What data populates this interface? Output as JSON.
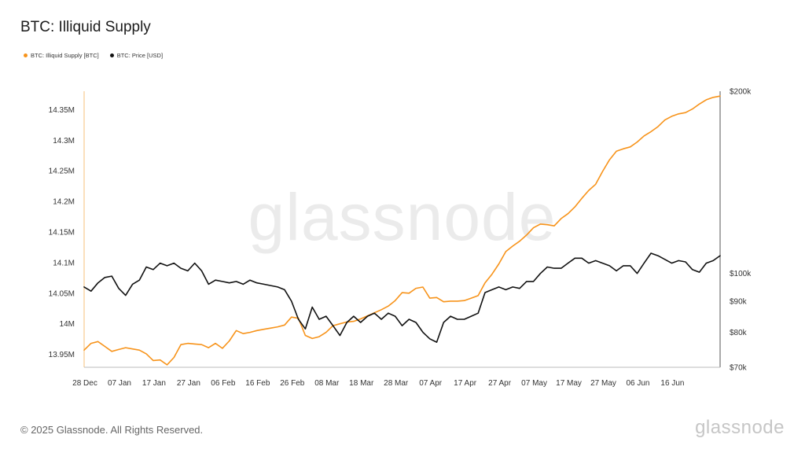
{
  "header": {
    "title": "BTC: Illiquid Supply"
  },
  "legend": [
    {
      "label": "BTC: Illiquid Supply [BTC]",
      "color": "#f7931a"
    },
    {
      "label": "BTC: Price [USD]",
      "color": "#111111"
    }
  ],
  "footer": {
    "copyright": "© 2025 Glassnode. All Rights Reserved.",
    "brand": "glassnode"
  },
  "watermark": "glassnode",
  "chart_data": {
    "type": "line",
    "title": "BTC: Illiquid Supply",
    "x_ticks": [
      "28 Dec",
      "07 Jan",
      "17 Jan",
      "27 Jan",
      "06 Feb",
      "16 Feb",
      "26 Feb",
      "08 Mar",
      "18 Mar",
      "28 Mar",
      "07 Apr",
      "17 Apr",
      "27 Apr",
      "07 May",
      "17 May",
      "27 May",
      "06 Jun",
      "16 Jun"
    ],
    "x_range": [
      0,
      184
    ],
    "left_axis": {
      "ticks": [
        "13.95M",
        "14M",
        "14.05M",
        "14.1M",
        "14.15M",
        "14.2M",
        "14.25M",
        "14.3M",
        "14.35M"
      ],
      "tick_values": [
        13.95,
        14.0,
        14.05,
        14.1,
        14.15,
        14.2,
        14.25,
        14.3,
        14.35
      ],
      "range": [
        13.929,
        14.38
      ]
    },
    "right_axis": {
      "ticks": [
        "$70k",
        "$80k",
        "$90k",
        "$100k",
        "$200k"
      ],
      "tick_values": [
        70000,
        80000,
        90000,
        100000,
        200000
      ],
      "scale": "log",
      "range": [
        70000,
        200000
      ]
    },
    "grid": false,
    "legend_position": "top-left",
    "series": [
      {
        "name": "BTC: Illiquid Supply [BTC]",
        "axis": "left",
        "color": "#f7931a",
        "x": [
          0,
          2,
          4,
          6,
          8,
          10,
          12,
          14,
          16,
          18,
          20,
          22,
          24,
          26,
          28,
          30,
          32,
          34,
          36,
          38,
          40,
          42,
          44,
          46,
          48,
          50,
          52,
          54,
          56,
          58,
          60,
          62,
          64,
          66,
          68,
          70,
          72,
          74,
          76,
          78,
          80,
          82,
          84,
          86,
          88,
          90,
          92,
          94,
          96,
          98,
          100,
          102,
          104,
          106,
          108,
          110,
          112,
          114,
          116,
          118,
          120,
          122,
          124,
          126,
          128,
          130,
          132,
          134,
          136,
          138,
          140,
          142,
          144,
          146,
          148,
          150,
          152,
          154,
          156,
          158,
          160,
          162,
          164,
          166,
          168,
          170,
          172,
          174,
          176,
          178,
          180,
          182,
          184
        ],
        "values": [
          13.957,
          13.968,
          13.971,
          13.963,
          13.955,
          13.958,
          13.961,
          13.959,
          13.957,
          13.951,
          13.94,
          13.941,
          13.933,
          13.945,
          13.966,
          13.968,
          13.967,
          13.966,
          13.961,
          13.968,
          13.96,
          13.972,
          13.989,
          13.984,
          13.986,
          13.989,
          13.991,
          13.993,
          13.995,
          13.998,
          14.011,
          14.009,
          13.981,
          13.976,
          13.979,
          13.986,
          13.997,
          14.0,
          14.003,
          14.004,
          14.008,
          14.013,
          14.018,
          14.023,
          14.029,
          14.038,
          14.051,
          14.05,
          14.058,
          14.06,
          14.042,
          14.043,
          14.036,
          14.037,
          14.037,
          14.038,
          14.042,
          14.046,
          14.067,
          14.081,
          14.098,
          14.118,
          14.127,
          14.135,
          14.145,
          14.157,
          14.163,
          14.162,
          14.16,
          14.172,
          14.18,
          14.191,
          14.205,
          14.218,
          14.228,
          14.249,
          14.268,
          14.282,
          14.286,
          14.289,
          14.297,
          14.307,
          14.314,
          14.322,
          14.333,
          14.339,
          14.343,
          14.345,
          14.351,
          14.359,
          14.366,
          14.37,
          14.372
        ]
      },
      {
        "name": "BTC: Price [USD]",
        "axis": "right",
        "color": "#111111",
        "x": [
          0,
          2,
          4,
          6,
          8,
          10,
          12,
          14,
          16,
          18,
          20,
          22,
          24,
          26,
          28,
          30,
          32,
          34,
          36,
          38,
          40,
          42,
          44,
          46,
          48,
          50,
          52,
          54,
          56,
          58,
          60,
          62,
          64,
          66,
          68,
          70,
          72,
          74,
          76,
          78,
          80,
          82,
          84,
          86,
          88,
          90,
          92,
          94,
          96,
          98,
          100,
          102,
          104,
          106,
          108,
          110,
          112,
          114,
          116,
          118,
          120,
          122,
          124,
          126,
          128,
          130,
          132,
          134,
          136,
          138,
          140,
          142,
          144,
          146,
          148,
          150,
          152,
          154,
          156,
          158,
          160,
          162,
          164,
          166,
          168,
          170,
          172,
          174,
          176,
          178,
          180,
          182,
          184
        ],
        "values": [
          95000,
          93500,
          96500,
          98500,
          99000,
          94500,
          92000,
          96000,
          97500,
          102500,
          101500,
          104000,
          103000,
          104000,
          102000,
          101000,
          104000,
          101000,
          96000,
          97500,
          97000,
          96500,
          97000,
          96000,
          97500,
          96500,
          96000,
          95500,
          95000,
          94000,
          90000,
          84000,
          81000,
          88000,
          84000,
          85000,
          82000,
          79000,
          83000,
          85000,
          83000,
          85000,
          86000,
          84000,
          86000,
          85000,
          82000,
          84000,
          83000,
          80000,
          78000,
          77000,
          83000,
          85000,
          84000,
          84000,
          85000,
          86000,
          93000,
          94000,
          95000,
          94000,
          95000,
          94500,
          97000,
          97000,
          100000,
          102500,
          102000,
          102000,
          104000,
          106000,
          106000,
          104000,
          105000,
          104000,
          103000,
          101000,
          103000,
          103000,
          100000,
          104000,
          108000,
          107000,
          105500,
          104000,
          105000,
          104500,
          101500,
          100500,
          104000,
          105000,
          107000
        ]
      }
    ]
  }
}
